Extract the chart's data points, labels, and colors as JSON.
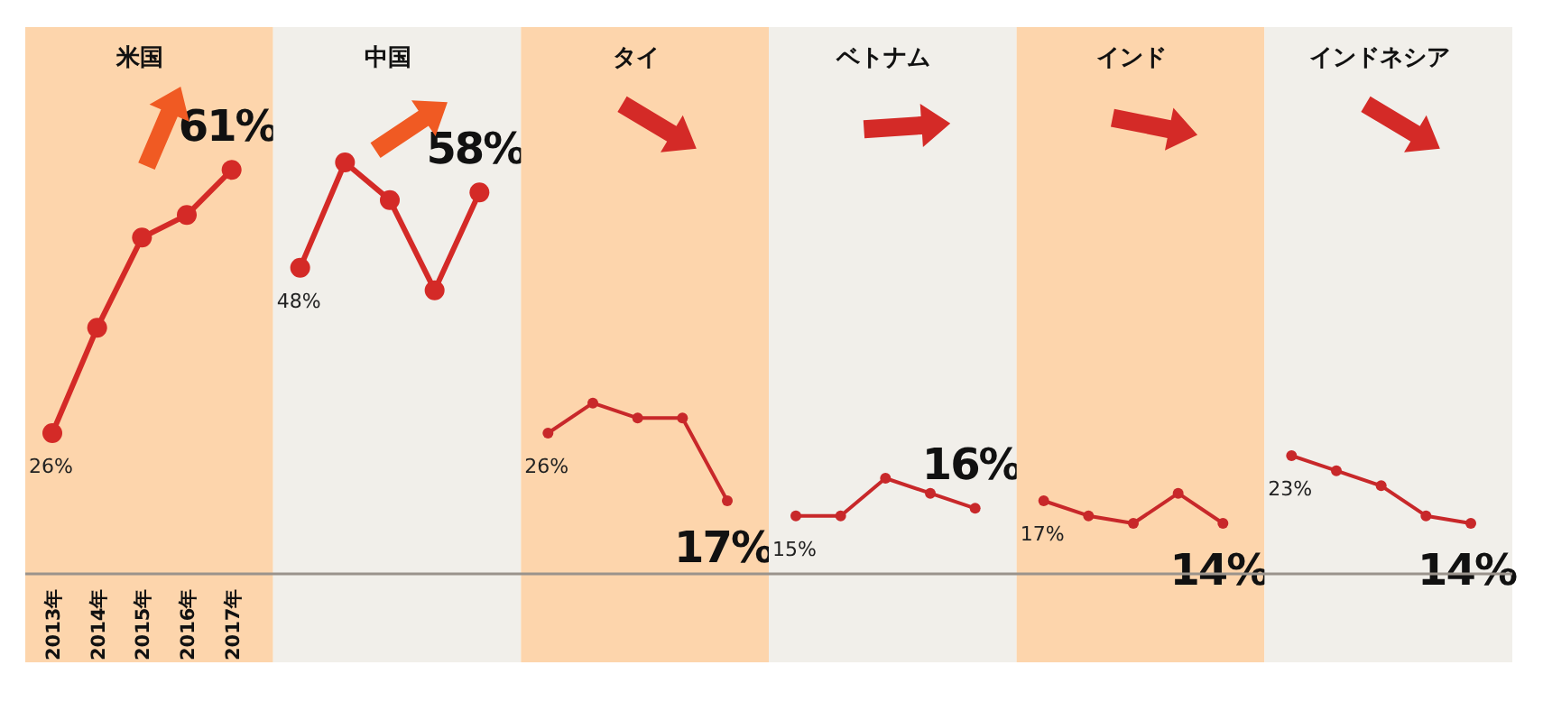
{
  "chart_data": [
    {
      "type": "line",
      "title": "米国",
      "categories": [
        "2013年",
        "2014年",
        "2015年",
        "2016年",
        "2017年"
      ],
      "values": [
        26,
        40,
        52,
        55,
        61
      ],
      "value_labels": [
        "26%",
        null,
        null,
        null,
        "61%"
      ],
      "color": "#d42a27",
      "marker": "circle",
      "tick_labels": "x"
    },
    {
      "type": "line",
      "title": "中国",
      "categories": [
        null,
        null,
        null,
        null,
        null
      ],
      "values": [
        48,
        62,
        57,
        45,
        58
      ],
      "value_labels": [
        "48%",
        null,
        null,
        null,
        "58%"
      ],
      "color": "#d42a27",
      "marker": "circle",
      "tick_labels": false
    },
    {
      "type": "line",
      "title": "タイ",
      "categories": [
        null,
        null,
        null,
        null,
        null
      ],
      "values": [
        26,
        30,
        28,
        28,
        17
      ],
      "value_labels": [
        "26%",
        null,
        null,
        null,
        "17%"
      ],
      "color": "#c8282a",
      "marker": "circle",
      "tick_labels": false
    },
    {
      "type": "line",
      "title": "ベトナム",
      "categories": [
        null,
        null,
        null,
        null,
        null
      ],
      "values": [
        15,
        15,
        20,
        18,
        16
      ],
      "value_labels": [
        "15%",
        null,
        null,
        null,
        "16%"
      ],
      "color": "#c8282a",
      "marker": "circle",
      "tick_labels": false
    },
    {
      "type": "line",
      "title": "インド",
      "categories": [
        null,
        null,
        null,
        null,
        null
      ],
      "values": [
        17,
        15,
        14,
        18,
        14
      ],
      "value_labels": [
        "17%",
        null,
        null,
        null,
        "14%"
      ],
      "color": "#c8282a",
      "marker": "circle",
      "tick_labels": false
    },
    {
      "type": "line",
      "title": "インドネシア",
      "categories": [
        null,
        null,
        null,
        null,
        null
      ],
      "values": [
        23,
        21,
        19,
        15,
        14
      ],
      "value_labels": [
        "23%",
        null,
        null,
        null,
        "14%"
      ],
      "color": "#c8282a",
      "marker": "circle",
      "tick_labels": false
    }
  ]
}
